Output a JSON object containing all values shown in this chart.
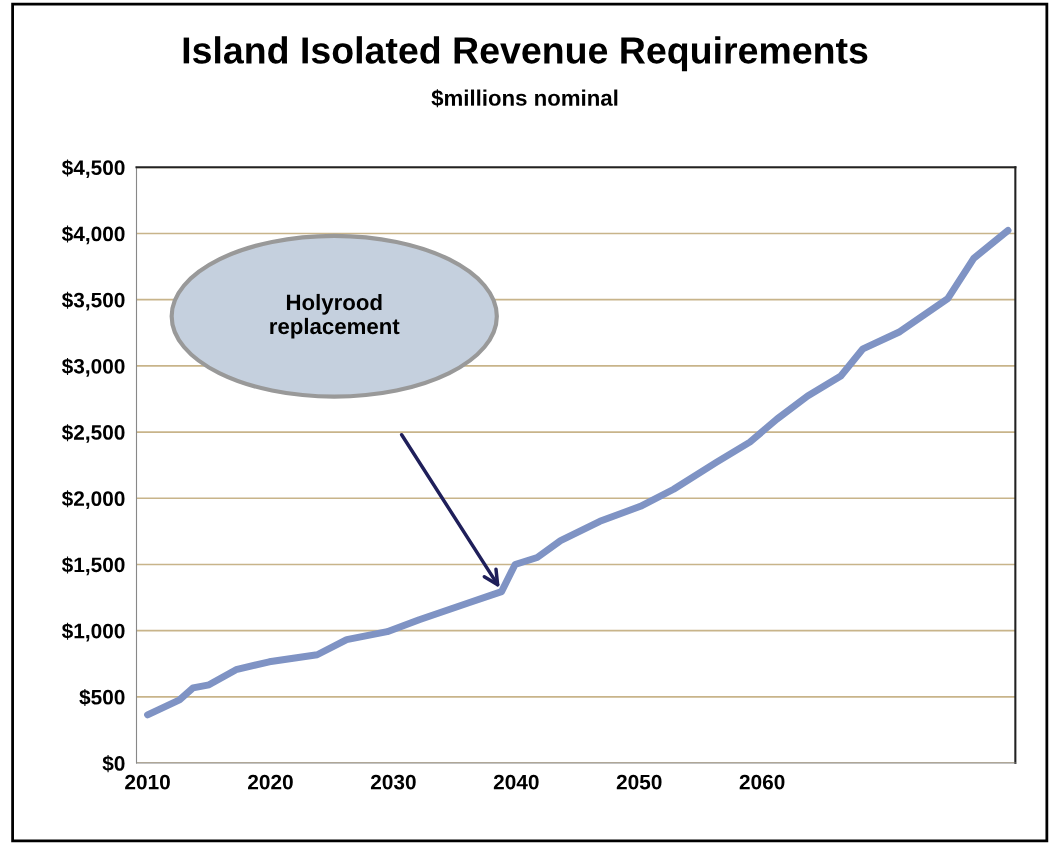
{
  "chart_data": {
    "type": "line",
    "title": "Island Isolated Revenue Requirements",
    "subtitle": "$millions nominal",
    "x": [
      2010,
      2012.6,
      2013.7,
      2015.0,
      2017.2,
      2019.9,
      2023.8,
      2026.2,
      2029.5,
      2032.1,
      2036.2,
      2038.8,
      2039.9,
      2041.7,
      2043.6,
      2046.8,
      2050.1,
      2052.8,
      2056.3,
      2059.0,
      2061.2,
      2063.7,
      2066.4,
      2068.2,
      2071.2,
      2075.1,
      2077.2,
      2080
    ],
    "series": [
      {
        "color": "#7f93c4",
        "values": [
          364,
          477,
          568,
          591,
          705,
          765,
          818,
          932,
          992,
          1083,
          1212,
          1295,
          1500,
          1553,
          1680,
          1826,
          1939,
          2068,
          2273,
          2424,
          2598,
          2773,
          2924,
          3129,
          3258,
          3508,
          3811,
          4023
        ]
      }
    ],
    "xlim": [
      2009.1,
      2080.6
    ],
    "xticks": [
      2010,
      2020,
      2030,
      2040,
      2050,
      2060
    ],
    "ylim": [
      0,
      4500
    ],
    "yticks": [
      {
        "value": 0,
        "label": "$0"
      },
      {
        "value": 500,
        "label": "$500"
      },
      {
        "value": 1000,
        "label": "$1,000"
      },
      {
        "value": 1500,
        "label": "$1,500"
      },
      {
        "value": 2000,
        "label": "$2,000"
      },
      {
        "value": 2500,
        "label": "$2,500"
      },
      {
        "value": 3000,
        "label": "$3,000"
      },
      {
        "value": 3500,
        "label": "$3,500"
      },
      {
        "value": 4000,
        "label": "$4,000"
      },
      {
        "value": 4500,
        "label": "$4,500"
      }
    ],
    "grid": "y",
    "marker": "none",
    "line_style": "solid",
    "annotations": [
      "Holyrood\nreplacement"
    ]
  }
}
